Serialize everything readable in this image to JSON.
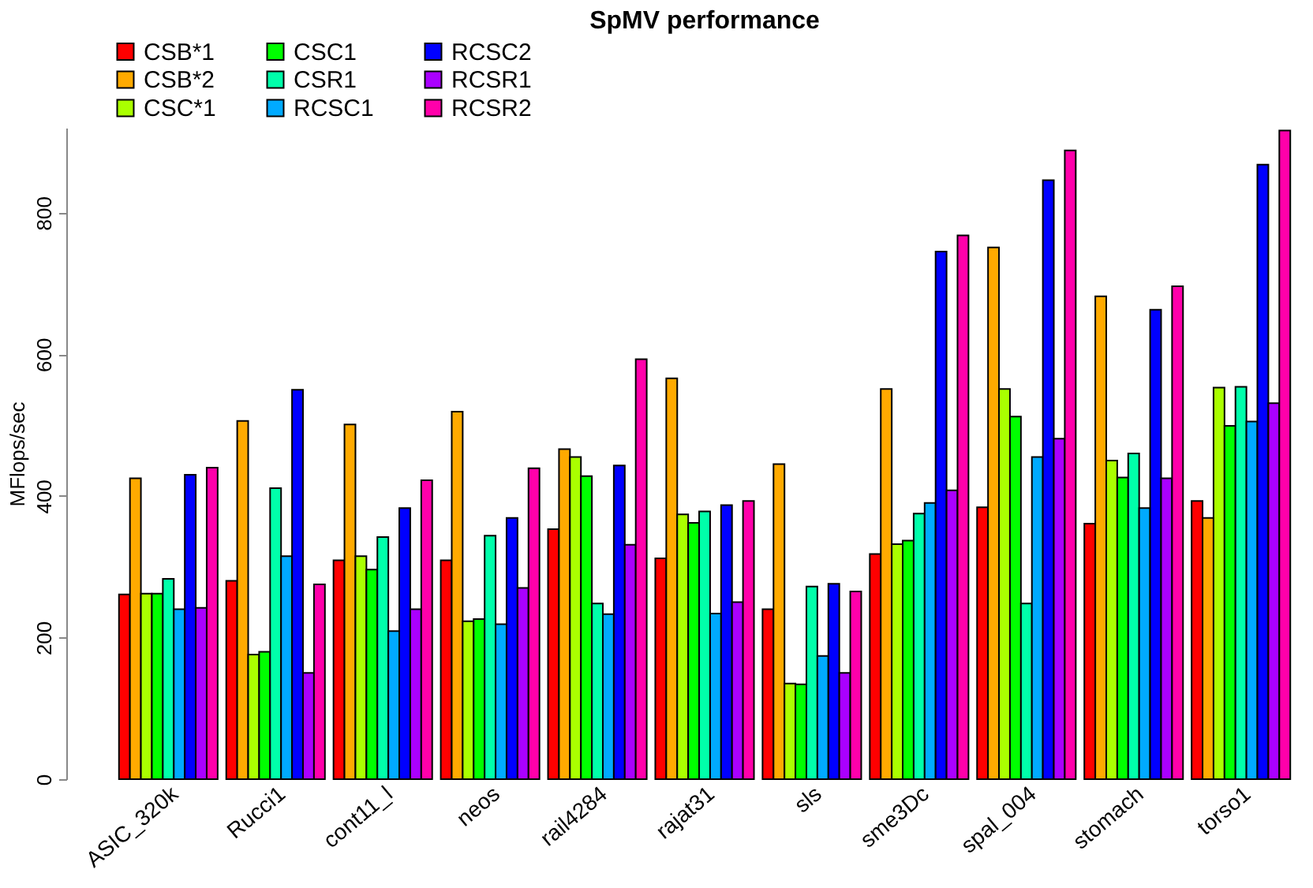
{
  "chart_data": {
    "type": "bar",
    "title": "SpMV performance",
    "ylabel": "MFlops/sec",
    "categories": [
      "ASIC_320k",
      "Rucci1",
      "cont11_l",
      "neos",
      "rail4284",
      "rajat31",
      "sls",
      "sme3Dc",
      "spal_004",
      "stomach",
      "torso1"
    ],
    "series": [
      {
        "name": "CSB*1",
        "color": "#ff0000",
        "values": [
          261,
          280,
          309,
          309,
          353,
          312,
          240,
          318,
          384,
          361,
          393
        ]
      },
      {
        "name": "CSB*2",
        "color": "#ffaa00",
        "values": [
          425,
          506,
          501,
          519,
          466,
          566,
          445,
          551,
          751,
          682,
          369
        ]
      },
      {
        "name": "CSC*1",
        "color": "#aaff00",
        "values": [
          262,
          176,
          315,
          223,
          455,
          374,
          135,
          332,
          551,
          450,
          553
        ]
      },
      {
        "name": "CSC1",
        "color": "#00ff00",
        "values": [
          262,
          180,
          296,
          226,
          428,
          362,
          134,
          337,
          512,
          426,
          499
        ]
      },
      {
        "name": "CSR1",
        "color": "#00ffaa",
        "values": [
          283,
          411,
          342,
          344,
          248,
          378,
          272,
          375,
          248,
          460,
          554
        ]
      },
      {
        "name": "RCSC1",
        "color": "#00aaff",
        "values": [
          240,
          315,
          209,
          219,
          233,
          234,
          174,
          390,
          455,
          383,
          505
        ]
      },
      {
        "name": "RCSC2",
        "color": "#0000ff",
        "values": [
          430,
          550,
          383,
          369,
          443,
          387,
          276,
          745,
          846,
          663,
          868
        ]
      },
      {
        "name": "RCSR1",
        "color": "#aa00ff",
        "values": [
          242,
          150,
          240,
          270,
          331,
          250,
          150,
          408,
          481,
          425,
          531
        ]
      },
      {
        "name": "RCSR2",
        "color": "#ff00aa",
        "values": [
          440,
          275,
          422,
          439,
          593,
          393,
          265,
          768,
          888,
          696,
          916
        ]
      }
    ],
    "ylim": [
      0,
      920
    ],
    "yticks": [
      0,
      200,
      400,
      600,
      800
    ],
    "grid": false,
    "legend": "top"
  }
}
